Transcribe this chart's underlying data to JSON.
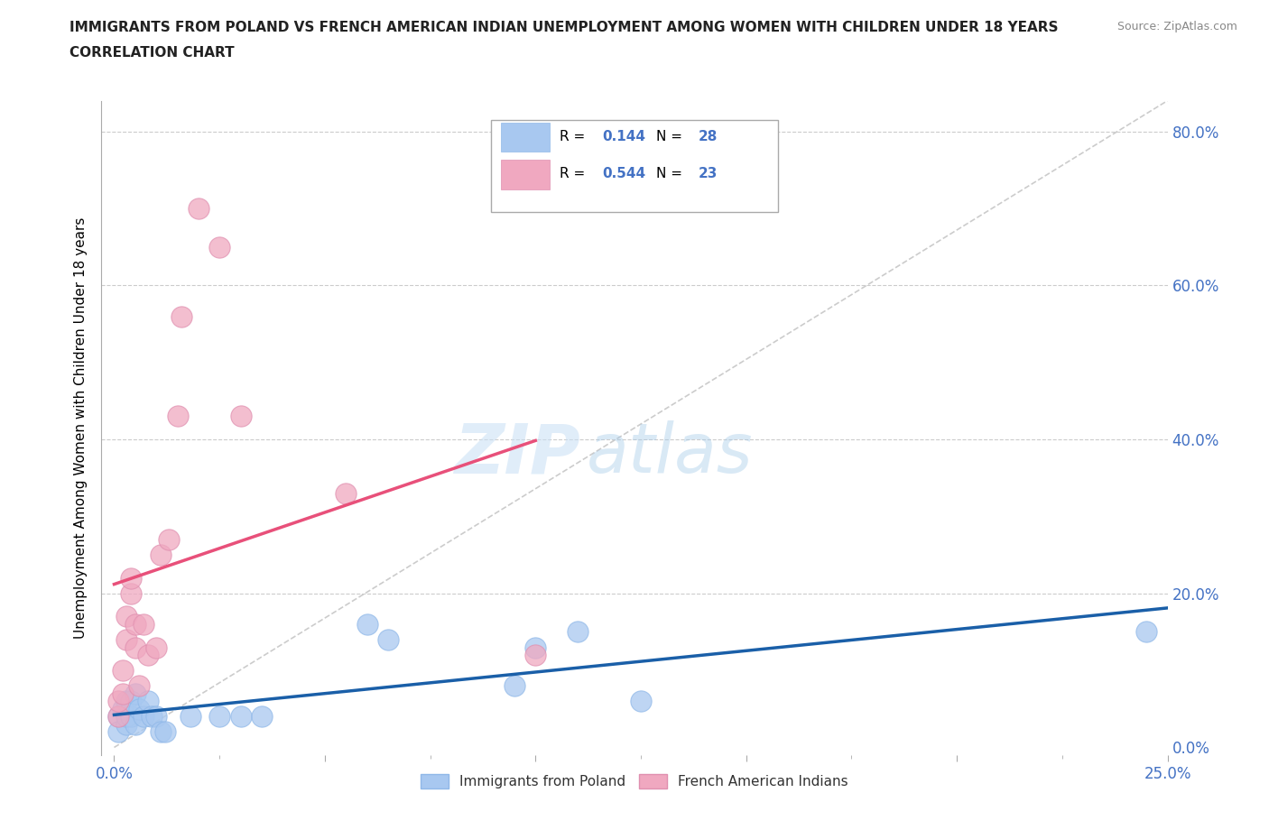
{
  "title_line1": "IMMIGRANTS FROM POLAND VS FRENCH AMERICAN INDIAN UNEMPLOYMENT AMONG WOMEN WITH CHILDREN UNDER 18 YEARS",
  "title_line2": "CORRELATION CHART",
  "source": "Source: ZipAtlas.com",
  "ylabel": "Unemployment Among Women with Children Under 18 years",
  "xlim": [
    0.0,
    0.25
  ],
  "ylim": [
    0.0,
    0.84
  ],
  "yticks": [
    0.0,
    0.2,
    0.4,
    0.6,
    0.8
  ],
  "color_poland": "#a8c8f0",
  "color_french": "#f0a8c0",
  "line_color_poland": "#1a5fa8",
  "line_color_french": "#e8507a",
  "diagonal_color": "#cccccc",
  "watermark_zip": "ZIP",
  "watermark_atlas": "atlas",
  "legend_labels": [
    "Immigrants from Poland",
    "French American Indians"
  ],
  "legend_R": [
    "0.144",
    "0.544"
  ],
  "legend_N": [
    "28",
    "23"
  ],
  "poland_x": [
    0.001,
    0.001,
    0.002,
    0.003,
    0.003,
    0.003,
    0.004,
    0.004,
    0.005,
    0.005,
    0.006,
    0.007,
    0.008,
    0.009,
    0.01,
    0.011,
    0.012,
    0.018,
    0.025,
    0.03,
    0.035,
    0.06,
    0.065,
    0.095,
    0.1,
    0.11,
    0.125,
    0.245
  ],
  "poland_y": [
    0.04,
    0.02,
    0.05,
    0.03,
    0.04,
    0.06,
    0.04,
    0.06,
    0.03,
    0.07,
    0.05,
    0.04,
    0.06,
    0.04,
    0.04,
    0.02,
    0.02,
    0.04,
    0.04,
    0.04,
    0.04,
    0.16,
    0.14,
    0.08,
    0.13,
    0.15,
    0.06,
    0.15
  ],
  "french_x": [
    0.001,
    0.001,
    0.002,
    0.002,
    0.003,
    0.003,
    0.004,
    0.004,
    0.005,
    0.005,
    0.006,
    0.007,
    0.008,
    0.01,
    0.011,
    0.013,
    0.015,
    0.016,
    0.02,
    0.025,
    0.03,
    0.055,
    0.1
  ],
  "french_y": [
    0.04,
    0.06,
    0.07,
    0.1,
    0.14,
    0.17,
    0.2,
    0.22,
    0.16,
    0.13,
    0.08,
    0.16,
    0.12,
    0.13,
    0.25,
    0.27,
    0.43,
    0.56,
    0.7,
    0.65,
    0.43,
    0.33,
    0.12
  ]
}
